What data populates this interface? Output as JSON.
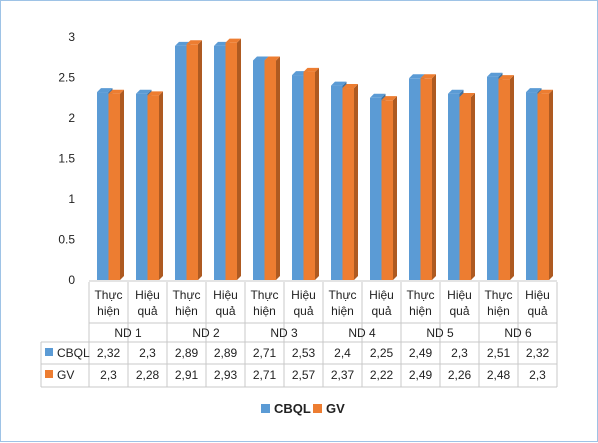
{
  "chart_data": {
    "type": "bar",
    "groups": [
      "ND 1",
      "ND 2",
      "ND 3",
      "ND 4",
      "ND 5",
      "ND 6"
    ],
    "subcategories": [
      [
        "Thực",
        "hiện"
      ],
      [
        "Hiệu",
        "quả"
      ]
    ],
    "series": [
      {
        "name": "CBQL",
        "color": "#5b9bd5",
        "side_color": "#41719c",
        "values": [
          2.32,
          2.3,
          2.89,
          2.89,
          2.71,
          2.53,
          2.4,
          2.25,
          2.49,
          2.3,
          2.51,
          2.32
        ],
        "labels": [
          "2,32",
          "2,3",
          "2,89",
          "2,89",
          "2,71",
          "2,53",
          "2,4",
          "2,25",
          "2,49",
          "2,3",
          "2,51",
          "2,32"
        ]
      },
      {
        "name": "GV",
        "color": "#ed7d31",
        "side_color": "#ae5a21",
        "values": [
          2.3,
          2.28,
          2.91,
          2.93,
          2.71,
          2.57,
          2.37,
          2.22,
          2.49,
          2.26,
          2.48,
          2.3
        ],
        "labels": [
          "2,3",
          "2,28",
          "2,91",
          "2,93",
          "2,71",
          "2,57",
          "2,37",
          "2,22",
          "2,49",
          "2,26",
          "2,48",
          "2,3"
        ]
      }
    ],
    "y_ticks": [
      "0",
      "0.5",
      "1",
      "1.5",
      "2",
      "2.5",
      "3"
    ],
    "ylim": [
      0,
      3
    ],
    "grid": false,
    "legend_position": "bottom",
    "data_table": true
  }
}
